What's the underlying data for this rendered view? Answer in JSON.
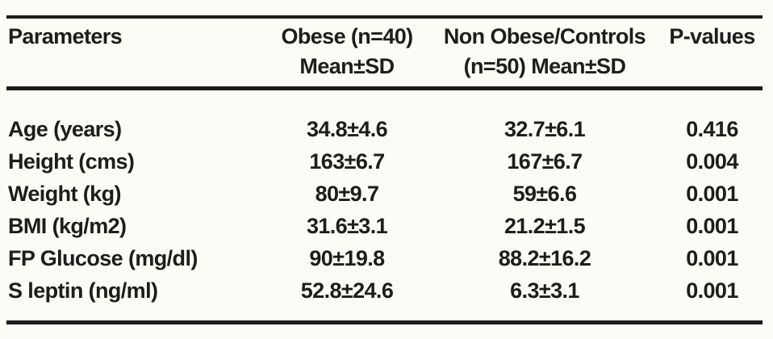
{
  "page": {
    "background_color": "#fcfcf7",
    "rule_color": "#1c1c1c",
    "text_color": "#1d1d1b"
  },
  "table": {
    "header": {
      "parameters": "Parameters",
      "obese_line1": "Obese (n=40)",
      "obese_line2": "Mean±SD",
      "controls_line1": "Non Obese/Controls",
      "controls_line2": "(n=50) Mean±SD",
      "pvalues": "P-values"
    },
    "rows": [
      {
        "cells": [
          "Age (years)",
          "34.8±4.6",
          "32.7±6.1",
          "0.416"
        ]
      },
      {
        "cells": [
          "Height (cms)",
          "163±6.7",
          "167±6.7",
          "0.004"
        ]
      },
      {
        "cells": [
          "Weight (kg)",
          "80±9.7",
          "59±6.6",
          "0.001"
        ]
      },
      {
        "cells": [
          "BMI (kg/m2)",
          "31.6±3.1",
          "21.2±1.5",
          "0.001"
        ]
      },
      {
        "cells": [
          "FP Glucose (mg/dl)",
          "90±19.8",
          "88.2±16.2",
          "0.001"
        ]
      },
      {
        "cells": [
          "S leptin (ng/ml)",
          "52.8±24.6",
          "6.3±3.1",
          "0.001"
        ]
      }
    ]
  }
}
